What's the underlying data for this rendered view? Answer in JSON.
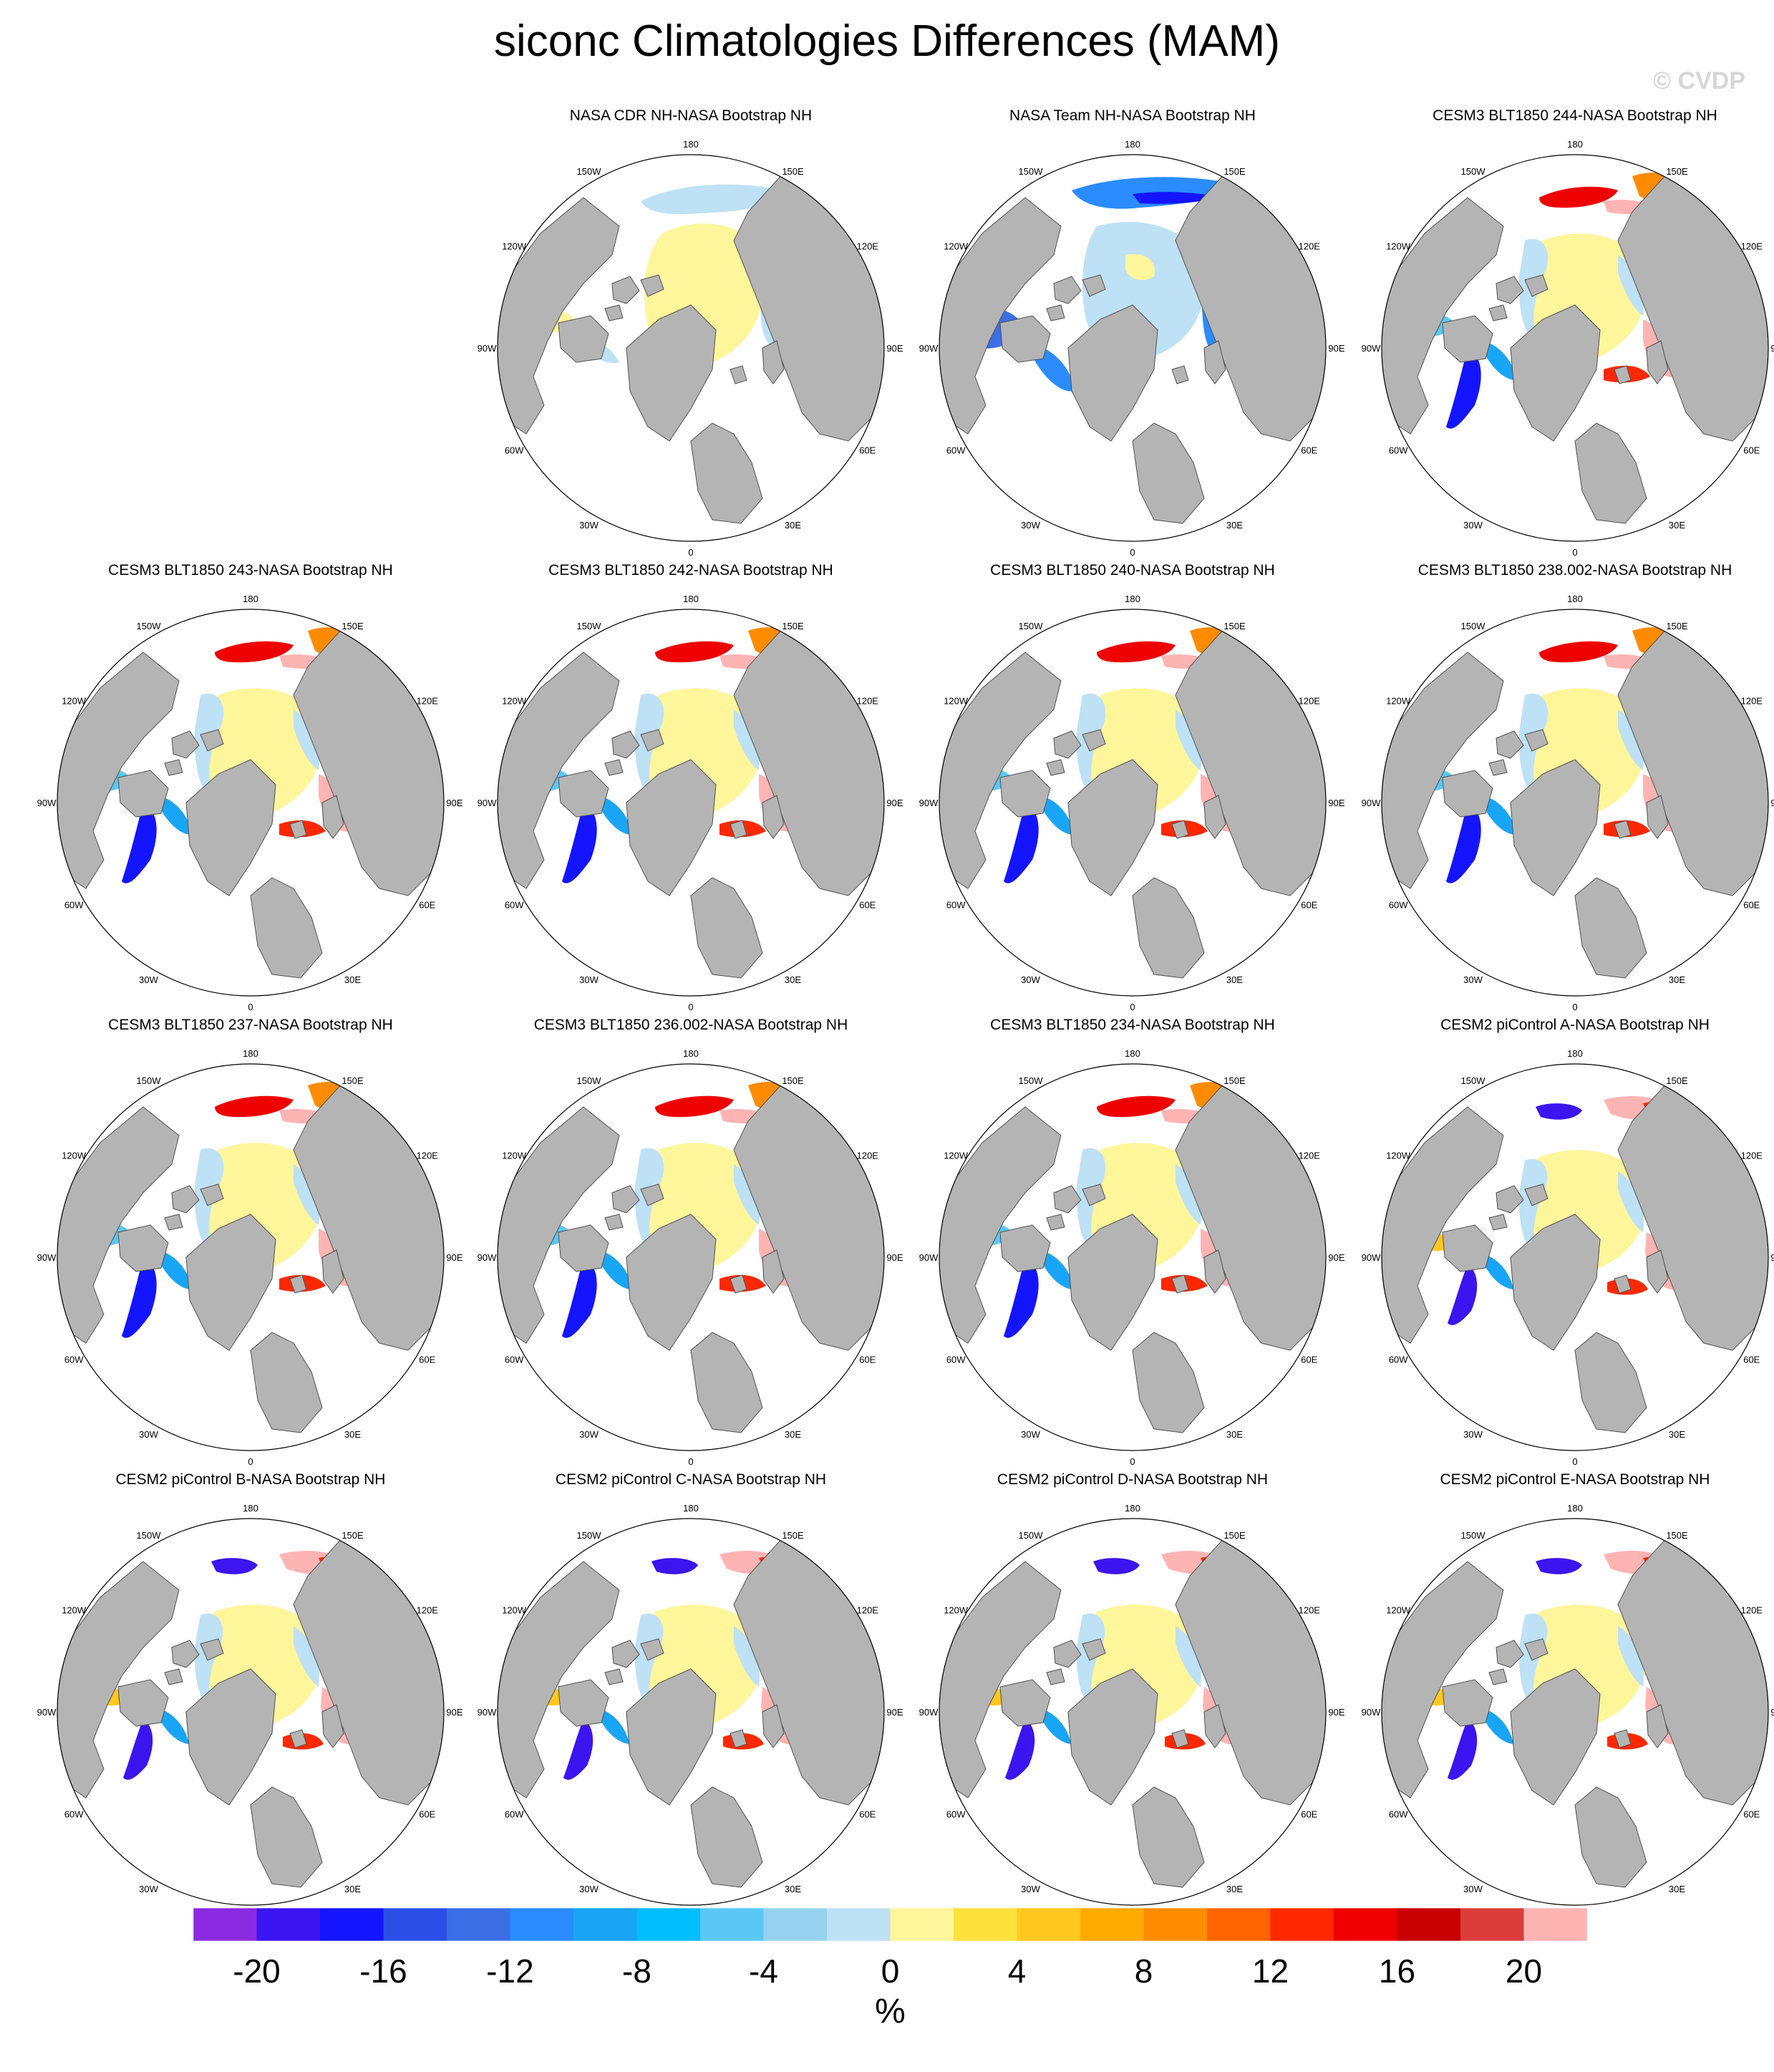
{
  "title": "siconc Climatologies Differences (MAM)",
  "watermark": "© CVDP",
  "longitude_labels": [
    "180",
    "150E",
    "120E",
    "90E",
    "60E",
    "30E",
    "0",
    "30W",
    "60W",
    "90W",
    "120W",
    "150W"
  ],
  "panels": [
    {
      "title": "NASA CDR NH-NASA Bootstrap NH",
      "pattern": "cdr"
    },
    {
      "title": "NASA Team NH-NASA Bootstrap NH",
      "pattern": "team"
    },
    {
      "title": "CESM3 BLT1850 244-NASA Bootstrap NH",
      "pattern": "cesm3"
    },
    {
      "title": "CESM3 BLT1850 243-NASA Bootstrap NH",
      "pattern": "cesm3"
    },
    {
      "title": "CESM3 BLT1850 242-NASA Bootstrap NH",
      "pattern": "cesm3"
    },
    {
      "title": "CESM3 BLT1850 240-NASA Bootstrap NH",
      "pattern": "cesm3"
    },
    {
      "title": "CESM3 BLT1850 238.002-NASA Bootstrap NH",
      "pattern": "cesm3"
    },
    {
      "title": "CESM3 BLT1850 237-NASA Bootstrap NH",
      "pattern": "cesm3"
    },
    {
      "title": "CESM3 BLT1850 236.002-NASA Bootstrap NH",
      "pattern": "cesm3"
    },
    {
      "title": "CESM3 BLT1850 234-NASA Bootstrap NH",
      "pattern": "cesm3"
    },
    {
      "title": "CESM2 piControl A-NASA Bootstrap NH",
      "pattern": "cesm2"
    },
    {
      "title": "CESM2 piControl B-NASA Bootstrap NH",
      "pattern": "cesm2"
    },
    {
      "title": "CESM2 piControl C-NASA Bootstrap NH",
      "pattern": "cesm2"
    },
    {
      "title": "CESM2 piControl D-NASA Bootstrap NH",
      "pattern": "cesm2"
    },
    {
      "title": "CESM2 piControl E-NASA Bootstrap NH",
      "pattern": "cesm2"
    }
  ],
  "colorbar": {
    "unit": "%",
    "tick_labels": [
      "-20",
      "-16",
      "-12",
      "-8",
      "-4",
      "0",
      "4",
      "8",
      "12",
      "16",
      "20"
    ],
    "colors": [
      "#8a2be2",
      "#3c14f0",
      "#1414ff",
      "#2a4ee6",
      "#3c6ee6",
      "#2a8cff",
      "#19a5f5",
      "#00beff",
      "#5ac8f5",
      "#96d2f0",
      "#bee1f5",
      "#fff59b",
      "#ffe13c",
      "#ffc81e",
      "#ffaa00",
      "#ff8c00",
      "#ff6400",
      "#ff2800",
      "#ee0000",
      "#c80000",
      "#dc3c3c",
      "#ffb4b4"
    ]
  },
  "colors": {
    "land": "#b4b4b4",
    "ocean": "#ffffff",
    "coast": "#505050"
  }
}
